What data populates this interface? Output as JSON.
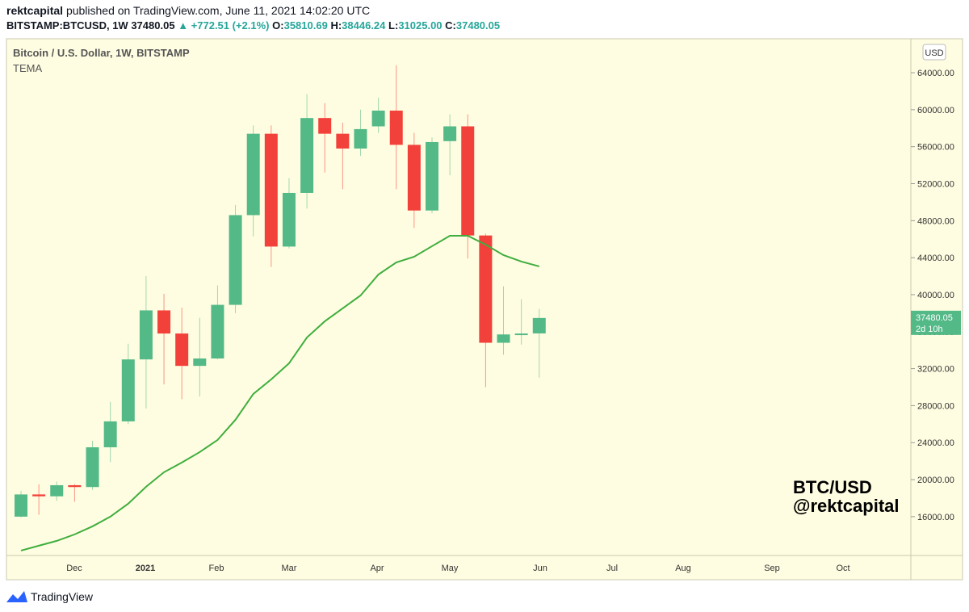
{
  "header": {
    "publisher": "rektcapital",
    "published": "published on TradingView.com, June 11, 2021 14:02:20 UTC",
    "symbol": "BITSTAMP:BTCUSD, 1W",
    "last": "37480.05",
    "change": "▲ +772.51 (+2.1%)",
    "o_label": "O:",
    "o": "35810.69",
    "h_label": "H:",
    "h": "38446.24",
    "l_label": "L:",
    "l": "31025.00",
    "c_label": "C:",
    "c": "37480.05"
  },
  "chart_data": {
    "type": "candlestick",
    "title": "Bitcoin / U.S. Dollar, 1W, BITSTAMP",
    "categories": [
      null,
      null,
      null,
      null,
      null,
      null,
      null,
      null,
      null,
      null,
      null,
      null,
      null,
      null,
      null,
      null,
      null,
      null,
      null,
      null,
      null,
      null,
      null,
      null,
      null,
      null,
      null,
      null,
      null,
      null
    ],
    "open": [
      16000,
      18400,
      18200,
      19400,
      19200,
      23500,
      26300,
      33000,
      38300,
      35800,
      32300,
      33100,
      38900,
      48600,
      57400,
      45200,
      51000,
      59100,
      57400,
      55800,
      58200,
      59900,
      56200,
      49100,
      56600,
      58200,
      46400,
      34800,
      35700,
      35810.69
    ],
    "high": [
      18800,
      19500,
      19800,
      19500,
      24200,
      28400,
      34700,
      42000,
      40100,
      38600,
      37500,
      41000,
      49700,
      58300,
      58300,
      52600,
      61700,
      60700,
      58600,
      60000,
      61300,
      64800,
      57500,
      57000,
      59500,
      59500,
      46600,
      40900,
      39500,
      38446.24
    ],
    "low": [
      15900,
      16200,
      17700,
      17600,
      18900,
      21900,
      26000,
      27700,
      30300,
      28700,
      29000,
      33000,
      38000,
      46300,
      43000,
      45000,
      49300,
      53200,
      51400,
      55000,
      57500,
      51400,
      47200,
      48800,
      52900,
      43900,
      30000,
      33500,
      34600,
      31025
    ],
    "close": [
      18400,
      18200,
      19400,
      19200,
      23500,
      26300,
      33000,
      38300,
      35800,
      32300,
      33100,
      38900,
      48600,
      57400,
      45200,
      51000,
      59100,
      57400,
      55800,
      57900,
      59900,
      56200,
      49100,
      56500,
      58200,
      46400,
      34800,
      35700,
      35800,
      37480.05
    ],
    "up_color": "#53b987",
    "down_color": "#f2413a",
    "indicator": {
      "name": "TEMA",
      "color": "#3fae3f",
      "values": [
        12330,
        12860,
        13380,
        14080,
        14950,
        16000,
        17400,
        19230,
        20800,
        21850,
        22980,
        24290,
        26470,
        29260,
        30840,
        32580,
        35370,
        37120,
        38520,
        39910,
        42180,
        43490,
        44100,
        45240,
        46370,
        46370,
        45410,
        44280,
        43580,
        43060
      ]
    },
    "ylim": [
      11800,
      67670
    ],
    "yticks": [
      {
        "value": 16000,
        "label": "16000.00"
      },
      {
        "value": 20000,
        "label": "20000.00"
      },
      {
        "value": 24000,
        "label": "24000.00"
      },
      {
        "value": 28000,
        "label": "28000.00"
      },
      {
        "value": 32000,
        "label": "32000.00"
      },
      {
        "value": 36000,
        "label": "36000.00"
      },
      {
        "value": 40000,
        "label": "40000.00"
      },
      {
        "value": 44000,
        "label": "44000.00"
      },
      {
        "value": 48000,
        "label": "48000.00"
      },
      {
        "value": 52000,
        "label": "52000.00"
      },
      {
        "value": 56000,
        "label": "56000.00"
      },
      {
        "value": 60000,
        "label": "60000.00"
      },
      {
        "value": 64000,
        "label": "64000.00"
      }
    ],
    "x_labels": [
      "Dec",
      "2021",
      "Feb",
      "Mar",
      "Apr",
      "May",
      "Jun",
      "Jul",
      "Aug",
      "Sep",
      "Oct"
    ],
    "currency": "USD",
    "countdown": "2d 10h",
    "watermark": [
      "BTC/USD",
      "@rektcapital"
    ]
  },
  "footer": {
    "brand": "TradingView"
  }
}
